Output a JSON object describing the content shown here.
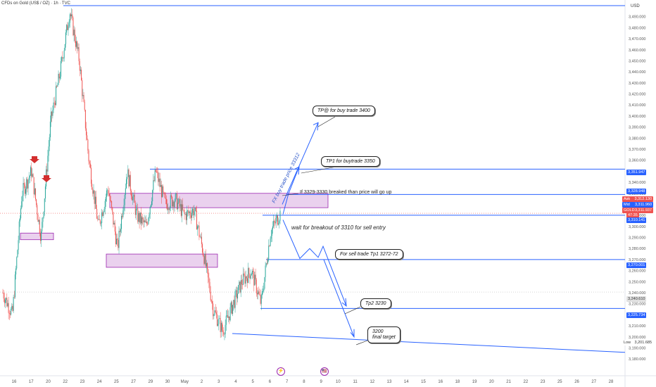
{
  "header": {
    "symbol_line": "CFDs on Gold (US$ / OZ) · 1h · TVC"
  },
  "axis": {
    "unit": "USD",
    "ylim": [
      3175,
      3500
    ],
    "y_ticks": [
      3180,
      3190,
      3200,
      3210,
      3220,
      3230,
      3240,
      3250,
      3260,
      3270,
      3280,
      3290,
      3300,
      3310,
      3320,
      3330,
      3340,
      3350,
      3360,
      3370,
      3380,
      3390,
      3400,
      3410,
      3420,
      3430,
      3440,
      3450,
      3460,
      3470,
      3480,
      3490
    ],
    "x_ticks": [
      "16",
      "17",
      "20",
      "22",
      "23",
      "24",
      "25",
      "27",
      "29",
      "30",
      "May",
      "2",
      "3",
      "4",
      "5",
      "6",
      "7",
      "8",
      "9",
      "10",
      "11",
      "12",
      "13",
      "14",
      "15",
      "16",
      "18",
      "19",
      "20",
      "21",
      "22",
      "23",
      "25",
      "26",
      "27",
      "28"
    ]
  },
  "chart_data": {
    "type": "line",
    "title": "CFDs on Gold (US$ / OZ) · 1h · TVC",
    "xlabel": "",
    "ylabel": "USD",
    "ylim": [
      3175,
      3500
    ],
    "grid": false,
    "series": [
      {
        "x": [
          "Apr 15",
          "Apr 16",
          "Apr 17",
          "Apr 17",
          "Apr 18",
          "Apr 20",
          "Apr 21",
          "Apr 22",
          "Apr 22",
          "Apr 23",
          "Apr 23",
          "Apr 24",
          "Apr 24",
          "Apr 25",
          "Apr 25",
          "Apr 27",
          "Apr 28",
          "Apr 28",
          "Apr 29",
          "Apr 29",
          "Apr 30",
          "Apr 30",
          "May 1",
          "May 1",
          "May 2",
          "May 2",
          "May 3",
          "May 4",
          "May 5",
          "May 5"
        ],
        "values": [
          3240,
          3220,
          3330,
          3350,
          3290,
          3395,
          3440,
          3495,
          3450,
          3360,
          3300,
          3335,
          3280,
          3350,
          3310,
          3300,
          3350,
          3320,
          3325,
          3310,
          3315,
          3275,
          3225,
          3205,
          3228,
          3250,
          3260,
          3230,
          3295,
          3312
        ]
      }
    ],
    "levels": [
      {
        "value": 3500,
        "label": ""
      },
      {
        "value": 3351.947,
        "label": "3,351.947"
      },
      {
        "value": 3328.948,
        "label": "3,328.948"
      },
      {
        "value": 3310.141,
        "label": "3,310.141"
      },
      {
        "value": 3270.001,
        "label": "3,270.001"
      },
      {
        "value": 3225.734,
        "label": "3,225.734"
      }
    ],
    "zones": [
      {
        "from": 3317,
        "to": 3330
      },
      {
        "from": 3263,
        "to": 3275
      },
      {
        "from": 3288,
        "to": 3294
      }
    ]
  },
  "price_labels": {
    "p1": "3,351.947",
    "p2": "3,328.948",
    "ask": "Ask",
    "ask_val": "3,312.130",
    "mid": "Mid",
    "mid_val": "3,311.960",
    "gold": "GOLD",
    "gold_val": "3,311.937",
    "time": "47:35",
    "p3": "3,310.141",
    "p4": "3,270.001",
    "p5": "3,240.610",
    "p6": "3,225.734",
    "low": "Low",
    "low_val": "3,201.685"
  },
  "annotations": {
    "tp2_buy": "TP@ for buy trade 3400",
    "tp1_buy": "TP1 for buytrade 3350",
    "breakout_note": "If 3329-3330 breaked than price will go up",
    "buy_price": "FX buy trade price 33312",
    "sell_wait": "wait for breakout of 3310 for sell entry",
    "sell_tp1": "For sell trade Tp1 3272-72",
    "tp2": "Tp2 3230",
    "final_1": "3200",
    "final_2": "final target"
  },
  "colors": {
    "up": "#26a69a",
    "down": "#ef5350",
    "level": "#2962ff",
    "zone_fill": "#e1bee7",
    "zone_border": "#9c27b0",
    "marker": "#d32f2f"
  }
}
